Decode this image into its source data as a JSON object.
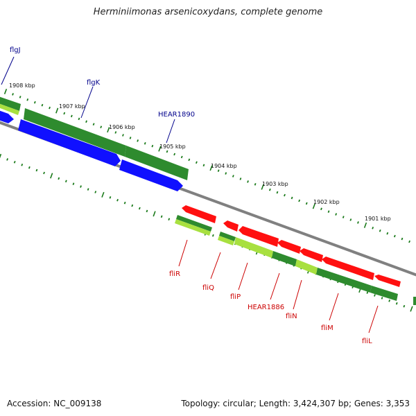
{
  "title": "Herminiimonas arsenicoxydans, complete genome",
  "footer": {
    "accession": "Accession: NC_009138",
    "info": "Topology: circular; Length: 3,424,307 bp; Genes: 3,353"
  },
  "colors": {
    "background": "#ffffff",
    "backbone": "#808080",
    "tick": "#1a7a1a",
    "cds_green": "#2e8b2e",
    "cds_lightgreen": "#a8e040",
    "cds_blue": "#1010ff",
    "cds_red": "#ff1010",
    "label_blue": "#00008b",
    "label_red": "#cc0000"
  },
  "scale_labels": [
    "1908 kbp",
    "1907 kbp",
    "1906 kbp",
    "1905 kbp",
    "1904 kbp",
    "1903 kbp",
    "1902 kbp",
    "1901 kbp"
  ],
  "gene_labels_top": [
    "flgJ",
    "flgK",
    "HEAR1890"
  ],
  "gene_labels_bottom": [
    "fliR",
    "fliQ",
    "fliP",
    "HEAR1886",
    "fliN",
    "fliM",
    "fliL"
  ]
}
